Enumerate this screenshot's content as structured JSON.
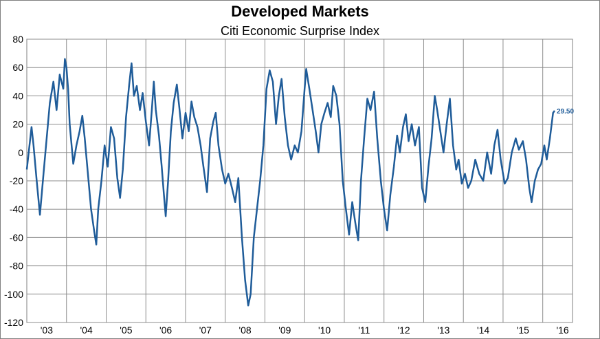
{
  "chart_data": {
    "type": "line",
    "title": "Developed Markets",
    "subtitle": "Citi Economic Surprise Index",
    "xlabel": "",
    "ylabel": "",
    "ylim": [
      -120,
      80
    ],
    "yticks": [
      80,
      60,
      40,
      20,
      0,
      -20,
      -40,
      -60,
      -80,
      -100,
      -120
    ],
    "xlim": [
      2003.0,
      2016.75
    ],
    "x_tick_labels": [
      "'03",
      "'04",
      "'05",
      "'06",
      "'07",
      "'08",
      "'09",
      "'10",
      "'11",
      "'12",
      "'13",
      "'14",
      "'15",
      "'16"
    ],
    "grid": true,
    "line_color": "#1f5c99",
    "last_value_label": "29.50",
    "series": [
      {
        "points": [
          [
            2003.0,
            -12
          ],
          [
            2003.08,
            8
          ],
          [
            2003.12,
            18
          ],
          [
            2003.17,
            5
          ],
          [
            2003.25,
            -20
          ],
          [
            2003.33,
            -44
          ],
          [
            2003.42,
            -15
          ],
          [
            2003.5,
            10
          ],
          [
            2003.58,
            35
          ],
          [
            2003.67,
            50
          ],
          [
            2003.75,
            30
          ],
          [
            2003.83,
            55
          ],
          [
            2003.92,
            45
          ],
          [
            2003.96,
            66
          ],
          [
            2004.0,
            60
          ],
          [
            2004.04,
            45
          ],
          [
            2004.08,
            20
          ],
          [
            2004.17,
            -8
          ],
          [
            2004.25,
            5
          ],
          [
            2004.33,
            15
          ],
          [
            2004.4,
            26
          ],
          [
            2004.46,
            10
          ],
          [
            2004.54,
            -15
          ],
          [
            2004.62,
            -40
          ],
          [
            2004.7,
            -56
          ],
          [
            2004.75,
            -65
          ],
          [
            2004.8,
            -40
          ],
          [
            2004.88,
            -20
          ],
          [
            2004.96,
            5
          ],
          [
            2005.04,
            -10
          ],
          [
            2005.12,
            18
          ],
          [
            2005.2,
            10
          ],
          [
            2005.28,
            -18
          ],
          [
            2005.35,
            -32
          ],
          [
            2005.42,
            -12
          ],
          [
            2005.5,
            25
          ],
          [
            2005.58,
            48
          ],
          [
            2005.64,
            63
          ],
          [
            2005.7,
            40
          ],
          [
            2005.77,
            47
          ],
          [
            2005.85,
            30
          ],
          [
            2005.92,
            42
          ],
          [
            2006.0,
            22
          ],
          [
            2006.08,
            5
          ],
          [
            2006.15,
            30
          ],
          [
            2006.2,
            50
          ],
          [
            2006.25,
            30
          ],
          [
            2006.33,
            12
          ],
          [
            2006.4,
            -10
          ],
          [
            2006.45,
            -28
          ],
          [
            2006.5,
            -45
          ],
          [
            2006.56,
            -20
          ],
          [
            2006.63,
            15
          ],
          [
            2006.7,
            35
          ],
          [
            2006.78,
            48
          ],
          [
            2006.85,
            30
          ],
          [
            2006.92,
            10
          ],
          [
            2007.0,
            28
          ],
          [
            2007.08,
            15
          ],
          [
            2007.15,
            36
          ],
          [
            2007.22,
            25
          ],
          [
            2007.3,
            18
          ],
          [
            2007.38,
            5
          ],
          [
            2007.45,
            -10
          ],
          [
            2007.54,
            -28
          ],
          [
            2007.62,
            10
          ],
          [
            2007.7,
            22
          ],
          [
            2007.76,
            28
          ],
          [
            2007.83,
            5
          ],
          [
            2007.92,
            -12
          ],
          [
            2008.0,
            -22
          ],
          [
            2008.08,
            -15
          ],
          [
            2008.17,
            -25
          ],
          [
            2008.25,
            -35
          ],
          [
            2008.33,
            -18
          ],
          [
            2008.42,
            -60
          ],
          [
            2008.5,
            -90
          ],
          [
            2008.58,
            -108
          ],
          [
            2008.64,
            -100
          ],
          [
            2008.72,
            -60
          ],
          [
            2008.8,
            -40
          ],
          [
            2008.88,
            -20
          ],
          [
            2008.96,
            5
          ],
          [
            2009.04,
            45
          ],
          [
            2009.12,
            58
          ],
          [
            2009.2,
            50
          ],
          [
            2009.28,
            20
          ],
          [
            2009.35,
            40
          ],
          [
            2009.42,
            52
          ],
          [
            2009.5,
            25
          ],
          [
            2009.58,
            5
          ],
          [
            2009.66,
            -5
          ],
          [
            2009.75,
            5
          ],
          [
            2009.83,
            0
          ],
          [
            2009.92,
            15
          ],
          [
            2010.0,
            45
          ],
          [
            2010.04,
            59
          ],
          [
            2010.12,
            45
          ],
          [
            2010.2,
            30
          ],
          [
            2010.28,
            15
          ],
          [
            2010.35,
            0
          ],
          [
            2010.42,
            20
          ],
          [
            2010.5,
            28
          ],
          [
            2010.58,
            35
          ],
          [
            2010.66,
            25
          ],
          [
            2010.72,
            47
          ],
          [
            2010.8,
            40
          ],
          [
            2010.88,
            20
          ],
          [
            2010.96,
            -20
          ],
          [
            2011.04,
            -40
          ],
          [
            2011.12,
            -58
          ],
          [
            2011.2,
            -35
          ],
          [
            2011.28,
            -50
          ],
          [
            2011.35,
            -62
          ],
          [
            2011.42,
            -20
          ],
          [
            2011.5,
            10
          ],
          [
            2011.58,
            38
          ],
          [
            2011.66,
            30
          ],
          [
            2011.75,
            43
          ],
          [
            2011.83,
            10
          ],
          [
            2011.92,
            -20
          ],
          [
            2012.0,
            -40
          ],
          [
            2012.08,
            -55
          ],
          [
            2012.16,
            -30
          ],
          [
            2012.25,
            -10
          ],
          [
            2012.33,
            12
          ],
          [
            2012.4,
            0
          ],
          [
            2012.48,
            18
          ],
          [
            2012.55,
            27
          ],
          [
            2012.62,
            8
          ],
          [
            2012.7,
            20
          ],
          [
            2012.78,
            5
          ],
          [
            2012.88,
            18
          ],
          [
            2012.96,
            -25
          ],
          [
            2013.04,
            -35
          ],
          [
            2013.12,
            -10
          ],
          [
            2013.2,
            10
          ],
          [
            2013.28,
            40
          ],
          [
            2013.34,
            30
          ],
          [
            2013.42,
            15
          ],
          [
            2013.5,
            0
          ],
          [
            2013.58,
            20
          ],
          [
            2013.66,
            38
          ],
          [
            2013.74,
            5
          ],
          [
            2013.82,
            -12
          ],
          [
            2013.88,
            -5
          ],
          [
            2013.96,
            -22
          ],
          [
            2014.04,
            -15
          ],
          [
            2014.12,
            -25
          ],
          [
            2014.2,
            -20
          ],
          [
            2014.3,
            -5
          ],
          [
            2014.4,
            -15
          ],
          [
            2014.5,
            -20
          ],
          [
            2014.6,
            0
          ],
          [
            2014.7,
            -15
          ],
          [
            2014.78,
            5
          ],
          [
            2014.86,
            16
          ],
          [
            2014.94,
            -5
          ],
          [
            2015.04,
            -22
          ],
          [
            2015.12,
            -18
          ],
          [
            2015.22,
            0
          ],
          [
            2015.32,
            10
          ],
          [
            2015.4,
            2
          ],
          [
            2015.5,
            8
          ],
          [
            2015.58,
            -5
          ],
          [
            2015.66,
            -25
          ],
          [
            2015.72,
            -35
          ],
          [
            2015.8,
            -20
          ],
          [
            2015.88,
            -12
          ],
          [
            2015.96,
            -8
          ],
          [
            2016.04,
            5
          ],
          [
            2016.1,
            -5
          ],
          [
            2016.18,
            10
          ],
          [
            2016.26,
            28
          ],
          [
            2016.3,
            29.5
          ]
        ]
      }
    ]
  }
}
